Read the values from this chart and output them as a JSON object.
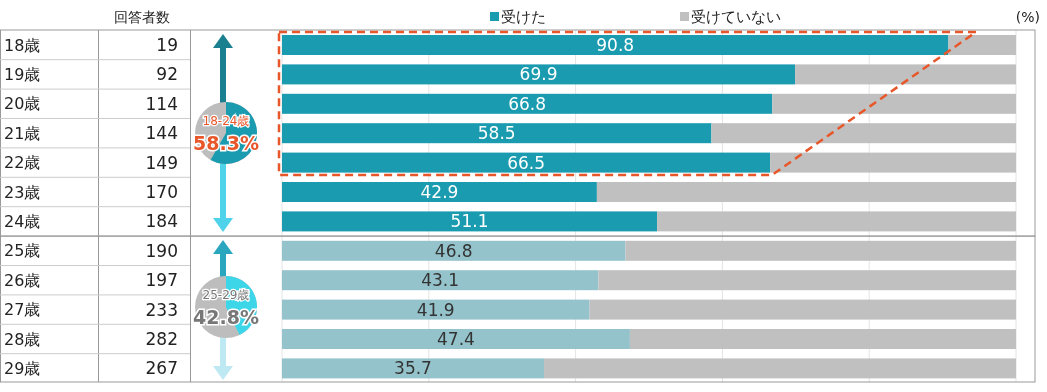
{
  "chart_data": {
    "type": "bar",
    "orientation": "horizontal",
    "stacked": true,
    "categories": [
      "18歳",
      "19歳",
      "20歳",
      "21歳",
      "22歳",
      "23歳",
      "24歳",
      "25歳",
      "26歳",
      "27歳",
      "28歳",
      "29歳"
    ],
    "series": [
      {
        "name": "受けた",
        "colors": [
          "#1a9bb0",
          "#1a9bb0",
          "#1a9bb0",
          "#1a9bb0",
          "#1a9bb0",
          "#1a9bb0",
          "#1a9bb0",
          "#94c3cc",
          "#94c3cc",
          "#94c3cc",
          "#94c3cc",
          "#94c3cc"
        ],
        "values": [
          90.8,
          69.9,
          66.8,
          58.5,
          66.5,
          42.9,
          51.1,
          46.8,
          43.1,
          41.9,
          47.4,
          35.7
        ],
        "value_labels": [
          "90.8",
          "69.9",
          "66.8",
          "58.5",
          "66.5",
          "42.9",
          "51.1",
          "46.8",
          "43.1",
          "41.9",
          "47.4",
          "35.7"
        ]
      },
      {
        "name": "受けていない",
        "color": "#c0c0c0",
        "values": [
          9.2,
          30.1,
          33.2,
          41.5,
          33.5,
          57.1,
          48.9,
          53.2,
          56.9,
          58.1,
          52.6,
          64.3
        ]
      }
    ],
    "xlim": [
      0,
      100
    ],
    "xticks": [
      {
        "value": 0,
        "label": null
      },
      {
        "value": 20,
        "label": null
      },
      {
        "value": 40,
        "label": null
      },
      {
        "value": 60,
        "label": null
      },
      {
        "value": 80,
        "label": null
      },
      {
        "value": 100,
        "label": null
      }
    ],
    "grid": "x",
    "legend": "top",
    "tick_labels": "y",
    "annotations": [
      "回答者数",
      "19",
      "92",
      "114",
      "144",
      "149",
      "170",
      "184",
      "190",
      "197",
      "233",
      "282",
      "267",
      "18-24歳",
      "58.3%",
      "25-29歳",
      "42.8%",
      "(%)"
    ]
  }
}
